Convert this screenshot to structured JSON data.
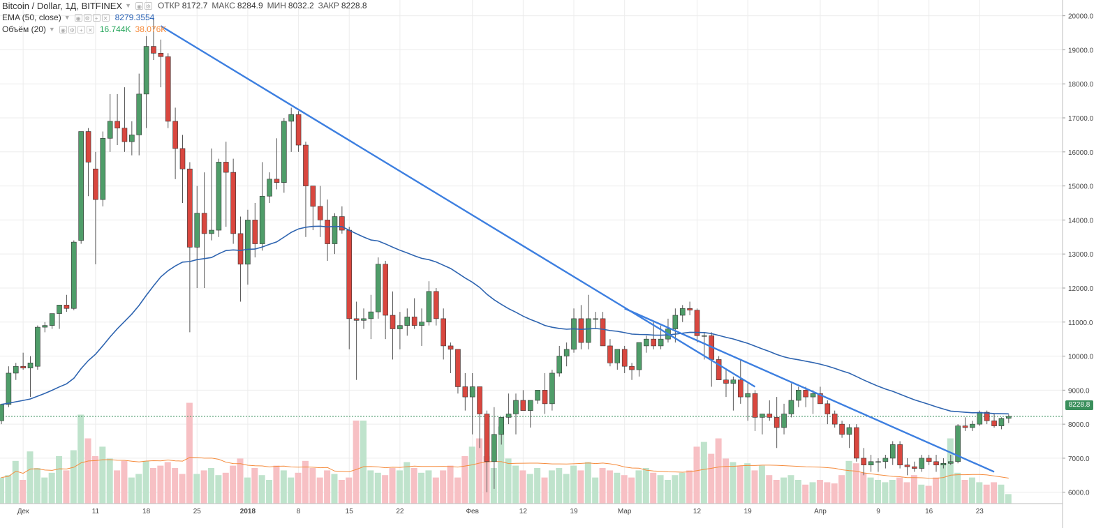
{
  "legend": {
    "title": "Bitcoin / Dollar, 1Д, BITFINEX",
    "open_label": "ОТКР",
    "open": "8172.7",
    "high_label": "МАКС",
    "high": "8284.9",
    "low_label": "МИН",
    "low": "8032.2",
    "close_label": "ЗАКР",
    "close": "8228.8",
    "ema_name": "EMA (50, close)",
    "ema_value": "8279.3554",
    "vol_name": "Объём (20)",
    "vol_value": "16.744K",
    "vol_ma_value": "38.076K"
  },
  "colors": {
    "up": "#4f9d69",
    "down": "#d9473f",
    "trend": "#3d7fe0",
    "ema": "#2e64b0",
    "vol_ma": "#f58b3c"
  },
  "chart_data": {
    "type": "candlestick",
    "ylim": [
      5400,
      20300
    ],
    "yticks": [
      6000,
      7000,
      8000,
      9000,
      10000,
      11000,
      12000,
      13000,
      14000,
      15000,
      16000,
      17000,
      18000,
      19000,
      20000
    ],
    "x_tick_labels": [
      {
        "i": 3,
        "label": "Дек"
      },
      {
        "i": 13,
        "label": "11"
      },
      {
        "i": 20,
        "label": "18"
      },
      {
        "i": 27,
        "label": "25"
      },
      {
        "i": 34,
        "label": "2018"
      },
      {
        "i": 41,
        "label": "8"
      },
      {
        "i": 48,
        "label": "15"
      },
      {
        "i": 55,
        "label": "22"
      },
      {
        "i": 65,
        "label": "Фев"
      },
      {
        "i": 72,
        "label": "12"
      },
      {
        "i": 79,
        "label": "19"
      },
      {
        "i": 86,
        "label": "Мар"
      },
      {
        "i": 96,
        "label": "12"
      },
      {
        "i": 103,
        "label": "19"
      },
      {
        "i": 113,
        "label": "Апр"
      },
      {
        "i": 121,
        "label": "9"
      },
      {
        "i": 128,
        "label": "16"
      },
      {
        "i": 135,
        "label": "23"
      }
    ],
    "current_price_label": "8228.8",
    "current_price": 8228.8,
    "candles": [
      [
        8100,
        8600,
        8000,
        8580
      ],
      [
        8580,
        9700,
        8500,
        9500
      ],
      [
        9500,
        9800,
        9300,
        9700
      ],
      [
        9700,
        10100,
        9600,
        9650
      ],
      [
        9650,
        10000,
        8800,
        9800
      ],
      [
        9700,
        10900,
        9600,
        10850
      ],
      [
        10850,
        11000,
        10700,
        10900
      ],
      [
        10900,
        11200,
        10800,
        11250
      ],
      [
        11250,
        11500,
        10800,
        11500
      ],
      [
        11500,
        11800,
        11300,
        11400
      ],
      [
        11400,
        13400,
        11350,
        13350
      ],
      [
        13400,
        16600,
        13300,
        16600
      ],
      [
        16600,
        16700,
        14700,
        15700
      ],
      [
        15500,
        16000,
        12700,
        14600
      ],
      [
        14600,
        16600,
        14400,
        16400
      ],
      [
        16400,
        17700,
        16000,
        16900
      ],
      [
        16900,
        17700,
        16200,
        16700
      ],
      [
        16700,
        17900,
        16000,
        16300
      ],
      [
        16300,
        16900,
        15900,
        16500
      ],
      [
        16500,
        18300,
        15900,
        17700
      ],
      [
        17700,
        19400,
        16700,
        19100
      ],
      [
        19100,
        19900,
        18700,
        18900
      ],
      [
        18900,
        19300,
        17900,
        18800
      ],
      [
        18800,
        18900,
        16700,
        16900
      ],
      [
        16900,
        17300,
        15200,
        16100
      ],
      [
        16100,
        16500,
        14500,
        15500
      ],
      [
        15500,
        15700,
        10700,
        13200
      ],
      [
        13200,
        15000,
        12000,
        14200
      ],
      [
        14200,
        15400,
        12000,
        13600
      ],
      [
        13600,
        16100,
        13400,
        13700
      ],
      [
        13700,
        15800,
        13500,
        15700
      ],
      [
        15700,
        16300,
        13800,
        15400
      ],
      [
        15400,
        15800,
        13300,
        13600
      ],
      [
        13600,
        14100,
        11600,
        12700
      ],
      [
        12700,
        14300,
        12100,
        14000
      ],
      [
        14000,
        14500,
        12900,
        13300
      ],
      [
        13300,
        15700,
        13100,
        14700
      ],
      [
        14700,
        15400,
        14500,
        15200
      ],
      [
        15200,
        16400,
        14900,
        15100
      ],
      [
        15100,
        17000,
        14800,
        16900
      ],
      [
        16900,
        17300,
        16000,
        17100
      ],
      [
        17100,
        17200,
        16000,
        16200
      ],
      [
        16200,
        16300,
        13500,
        15000
      ],
      [
        15000,
        15000,
        13700,
        14400
      ],
      [
        14400,
        15000,
        13500,
        14000
      ],
      [
        14000,
        14600,
        12800,
        13300
      ],
      [
        13300,
        14200,
        13000,
        14100
      ],
      [
        14100,
        14400,
        13600,
        13700
      ],
      [
        13700,
        13800,
        10200,
        11100
      ],
      [
        11100,
        11600,
        9300,
        11050
      ],
      [
        11050,
        11400,
        10800,
        11100
      ],
      [
        11100,
        11800,
        10500,
        11300
      ],
      [
        11300,
        12900,
        11100,
        12700
      ],
      [
        12700,
        12800,
        10500,
        11200
      ],
      [
        11200,
        11900,
        9900,
        10800
      ],
      [
        10800,
        11300,
        10200,
        10900
      ],
      [
        10900,
        11400,
        10600,
        11150
      ],
      [
        11150,
        11700,
        10800,
        10900
      ],
      [
        10900,
        11400,
        10300,
        11000
      ],
      [
        11000,
        12200,
        10900,
        11900
      ],
      [
        11900,
        12000,
        10900,
        11100
      ],
      [
        11100,
        11400,
        9900,
        10300
      ],
      [
        10300,
        10400,
        9500,
        10200
      ],
      [
        10200,
        10200,
        8900,
        9100
      ],
      [
        9100,
        9500,
        8400,
        8800
      ],
      [
        8800,
        9500,
        7700,
        9100
      ],
      [
        9100,
        9100,
        7300,
        8300
      ],
      [
        8300,
        8400,
        6000,
        6900
      ],
      [
        6900,
        8500,
        6100,
        7700
      ],
      [
        7700,
        8200,
        7400,
        8200
      ],
      [
        8200,
        8900,
        8000,
        8300
      ],
      [
        8300,
        8900,
        7700,
        8700
      ],
      [
        8700,
        9000,
        8500,
        8400
      ],
      [
        8400,
        8600,
        7900,
        8700
      ],
      [
        8700,
        9000,
        8600,
        9000
      ],
      [
        9000,
        9500,
        8300,
        8600
      ],
      [
        8600,
        9600,
        8400,
        9500
      ],
      [
        9500,
        10300,
        9400,
        10000
      ],
      [
        10000,
        10400,
        9700,
        10200
      ],
      [
        10200,
        11400,
        10100,
        11100
      ],
      [
        11100,
        11500,
        10200,
        10400
      ],
      [
        10400,
        11800,
        10200,
        11100
      ],
      [
        11100,
        11300,
        10800,
        11100
      ],
      [
        11100,
        11300,
        10300,
        10300
      ],
      [
        10300,
        10500,
        9700,
        9800
      ],
      [
        9800,
        10200,
        9600,
        10200
      ],
      [
        10200,
        10300,
        9500,
        9700
      ],
      [
        9700,
        9800,
        9300,
        9600
      ],
      [
        9600,
        10300,
        9400,
        10400
      ],
      [
        10300,
        10600,
        10100,
        10500
      ],
      [
        10500,
        11000,
        10200,
        10300
      ],
      [
        10300,
        10900,
        10200,
        10500
      ],
      [
        10500,
        11100,
        10400,
        10800
      ],
      [
        10800,
        11400,
        10400,
        11200
      ],
      [
        11200,
        11500,
        11000,
        11400
      ],
      [
        11400,
        11600,
        11200,
        11350
      ],
      [
        11350,
        11400,
        10400,
        10600
      ],
      [
        10600,
        10700,
        9900,
        10600
      ],
      [
        10600,
        10700,
        9100,
        9900
      ],
      [
        9900,
        10000,
        9300,
        9300
      ],
      [
        9300,
        9600,
        8800,
        9200
      ],
      [
        9200,
        9400,
        8400,
        9300
      ],
      [
        9300,
        9900,
        8600,
        8800
      ],
      [
        8800,
        9200,
        8100,
        8900
      ],
      [
        8900,
        9000,
        7800,
        8200
      ],
      [
        8200,
        8300,
        7700,
        8300
      ],
      [
        8300,
        8700,
        8100,
        8200
      ],
      [
        8200,
        8800,
        7300,
        7900
      ],
      [
        7900,
        8600,
        7700,
        8300
      ],
      [
        8300,
        9200,
        8200,
        8700
      ],
      [
        8700,
        9100,
        8500,
        9000
      ],
      [
        9000,
        9100,
        8500,
        8800
      ],
      [
        8800,
        9000,
        8300,
        8900
      ],
      [
        8900,
        9100,
        8600,
        8600
      ],
      [
        8600,
        8700,
        8000,
        8300
      ],
      [
        8300,
        8400,
        7900,
        8000
      ],
      [
        8000,
        8100,
        7600,
        7700
      ],
      [
        7700,
        8000,
        7300,
        7900
      ],
      [
        7900,
        8000,
        6900,
        7000
      ],
      [
        7000,
        7300,
        6500,
        6800
      ],
      [
        6800,
        7100,
        6600,
        6900
      ],
      [
        6900,
        7000,
        6600,
        6900
      ],
      [
        6900,
        7100,
        6700,
        7000
      ],
      [
        7000,
        7500,
        6800,
        7400
      ],
      [
        7400,
        7500,
        6700,
        6800
      ],
      [
        6800,
        7000,
        6500,
        6750
      ],
      [
        6750,
        6900,
        6600,
        6700
      ],
      [
        6700,
        7100,
        6600,
        7000
      ],
      [
        7000,
        7100,
        6800,
        6900
      ],
      [
        6900,
        7100,
        6600,
        6800
      ],
      [
        6800,
        7000,
        6700,
        6850
      ],
      [
        6850,
        7100,
        6800,
        6900
      ],
      [
        6900,
        8000,
        6850,
        7950
      ],
      [
        7950,
        8200,
        7800,
        7900
      ],
      [
        7900,
        8100,
        7800,
        8000
      ],
      [
        8000,
        8400,
        7950,
        8350
      ],
      [
        8350,
        8400,
        8000,
        8100
      ],
      [
        8100,
        8300,
        7900,
        7950
      ],
      [
        7950,
        8200,
        7850,
        8170
      ],
      [
        8172.7,
        8284.9,
        8032.2,
        8228.8
      ]
    ],
    "volume_max": 100000,
    "volumes": [
      22,
      24,
      36,
      20,
      44,
      30,
      22,
      26,
      40,
      28,
      45,
      75,
      55,
      40,
      48,
      38,
      28,
      36,
      22,
      25,
      36,
      30,
      32,
      35,
      30,
      25,
      85,
      25,
      28,
      30,
      24,
      26,
      32,
      38,
      22,
      30,
      24,
      20,
      32,
      28,
      22,
      26,
      36,
      30,
      22,
      28,
      25,
      20,
      22,
      70,
      70,
      28,
      26,
      24,
      30,
      28,
      35,
      30,
      26,
      28,
      22,
      28,
      32,
      22,
      40,
      48,
      55,
      40,
      30,
      65,
      38,
      32,
      28,
      25,
      30,
      22,
      28,
      30,
      25,
      32,
      28,
      35,
      22,
      30,
      28,
      26,
      24,
      22,
      28,
      30,
      26,
      24,
      20,
      24,
      26,
      28,
      48,
      52,
      42,
      55,
      38,
      35,
      32,
      34,
      28,
      32,
      24,
      20,
      22,
      24,
      20,
      16,
      18,
      20,
      18,
      17,
      24,
      36,
      34,
      26,
      22,
      20,
      18,
      20,
      22,
      18,
      24,
      16,
      15,
      22,
      34,
      55,
      26,
      20,
      22,
      18,
      16,
      18,
      16,
      8
    ]
  }
}
